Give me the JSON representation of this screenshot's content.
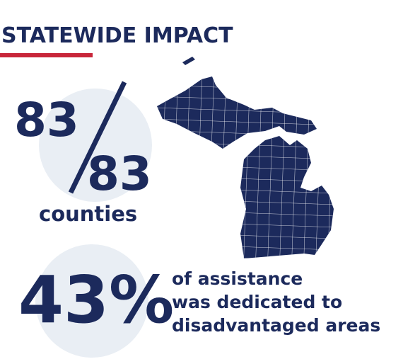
{
  "header": {
    "title": "STATEWIDE IMPACT"
  },
  "counties": {
    "numerator": "83",
    "denominator": "83",
    "label": "counties"
  },
  "assistance": {
    "figure": "43%",
    "lines": [
      "of assistance",
      "was dedicated to",
      "disadvantaged areas"
    ]
  }
}
